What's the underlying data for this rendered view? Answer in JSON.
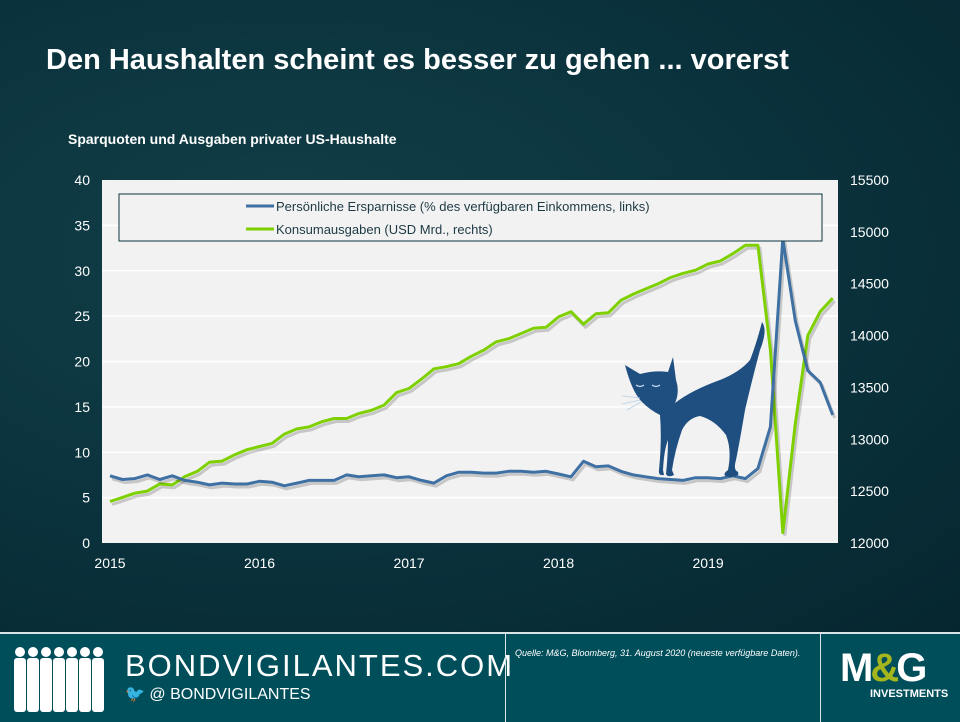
{
  "title": "Den Haushalten scheint es besser zu gehen ... vorerst",
  "subtitle": "Sparquoten und Ausgaben privater US-Haushalte",
  "colors": {
    "savings": "#3f70a3",
    "spending": "#7ed000",
    "plot_bg": "#f2f2f2",
    "cat": "#1f4f80"
  },
  "chart_data": {
    "type": "line",
    "x_start": "2015-01",
    "x_frequency": "monthly",
    "xticks": [
      "2015",
      "2016",
      "2017",
      "2018",
      "2019"
    ],
    "y_left": {
      "lim": [
        0,
        40
      ],
      "ticks": [
        "0",
        "5",
        "10",
        "15",
        "20",
        "25",
        "30",
        "35",
        "40"
      ]
    },
    "y_right": {
      "lim": [
        12000,
        15500
      ],
      "ticks": [
        "12000",
        "12500",
        "13000",
        "13500",
        "14000",
        "14500",
        "15000",
        "15500"
      ]
    },
    "grid": true,
    "legend_placement": "top",
    "series": [
      {
        "name": "Persönliche Ersparnisse (% des verfügbaren Einkommens, links)",
        "axis": "left",
        "values": [
          7.4,
          7.0,
          7.1,
          7.5,
          7.0,
          7.4,
          6.9,
          6.7,
          6.4,
          6.6,
          6.5,
          6.5,
          6.8,
          6.7,
          6.3,
          6.6,
          6.9,
          6.9,
          6.9,
          7.5,
          7.3,
          7.4,
          7.5,
          7.2,
          7.3,
          6.9,
          6.6,
          7.4,
          7.8,
          7.8,
          7.7,
          7.7,
          7.9,
          7.9,
          7.8,
          7.9,
          7.6,
          7.3,
          9.0,
          8.4,
          8.5,
          7.9,
          7.5,
          7.3,
          7.1,
          7.0,
          6.9,
          7.2,
          7.2,
          7.1,
          7.4,
          7.1,
          8.2,
          12.8,
          33.5,
          24.5,
          19.0,
          17.7,
          14.1
        ]
      },
      {
        "name": "Konsumausgaben (USD Mrd., rechts)",
        "axis": "right",
        "values": [
          12400,
          12440,
          12480,
          12500,
          12570,
          12560,
          12640,
          12690,
          12780,
          12790,
          12850,
          12900,
          12930,
          12960,
          13050,
          13100,
          13120,
          13170,
          13200,
          13200,
          13250,
          13280,
          13330,
          13450,
          13490,
          13580,
          13680,
          13700,
          13730,
          13800,
          13860,
          13940,
          13970,
          14020,
          14070,
          14080,
          14180,
          14230,
          14110,
          14210,
          14220,
          14340,
          14400,
          14450,
          14500,
          14560,
          14600,
          14630,
          14690,
          14720,
          14790,
          14870,
          14870,
          13860,
          12100,
          13150,
          14000,
          14230,
          14360
        ]
      }
    ]
  },
  "footer": {
    "site": "BONDVIGILANTES.COM",
    "handle_at": "@",
    "handle": "BONDVIGILANTES",
    "source": "Quelle: M&G, Bloomberg,  31. August 2020 (neueste verfügbare Daten).",
    "logo_text": "M&G",
    "logo_sub": "INVESTMENTS"
  }
}
